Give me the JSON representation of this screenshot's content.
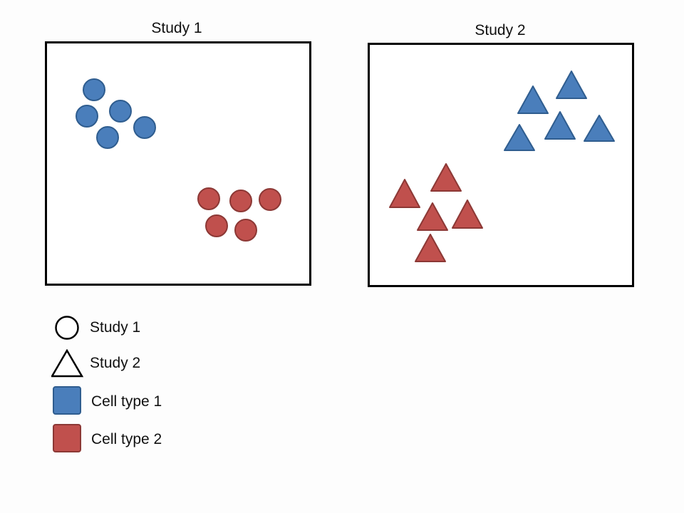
{
  "diagram": {
    "panels": [
      {
        "id": "study1",
        "title": "Study 1",
        "marker": "circle"
      },
      {
        "id": "study2",
        "title": "Study 2",
        "marker": "triangle"
      }
    ],
    "legend": [
      {
        "label": "Study 1",
        "symbol": "circle-outline"
      },
      {
        "label": "Study 2",
        "symbol": "triangle-outline"
      },
      {
        "label": "Cell type 1",
        "symbol": "square",
        "color": "#4a7ebb"
      },
      {
        "label": "Cell type 2",
        "symbol": "square",
        "color": "#c0504d"
      }
    ],
    "colors": {
      "cell_type_1": "#4a7ebb",
      "cell_type_1_stroke": "#2f5d8f",
      "cell_type_2": "#c0504d",
      "cell_type_2_stroke": "#8c3835"
    }
  }
}
